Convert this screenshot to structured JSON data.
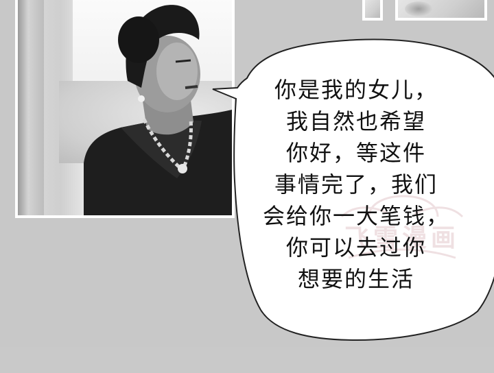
{
  "speech_bubble": {
    "lines": [
      "你是我的女儿，",
      "我自然也希望",
      "你好，等这件",
      "事情完了，我们",
      "会给你一大笔钱，",
      "你可以去过你",
      "想要的生活"
    ]
  },
  "watermark": {
    "text": "飞雪漫画"
  },
  "colors": {
    "page_background": "#c8c8c8",
    "panel_border": "#ffffff",
    "bubble_fill": "#ffffff",
    "text": "#111111",
    "watermark": "#e3c8cc"
  }
}
